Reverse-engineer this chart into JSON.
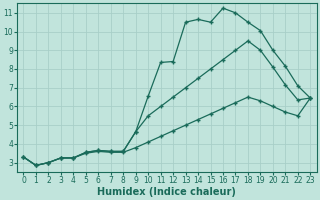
{
  "title": "",
  "xlabel": "Humidex (Indice chaleur)",
  "ylabel": "",
  "background_color": "#c1e4dc",
  "grid_color": "#a8cfc8",
  "line_color": "#1a6b5a",
  "xlim": [
    -0.5,
    23.5
  ],
  "ylim": [
    2.5,
    11.5
  ],
  "xticks": [
    0,
    1,
    2,
    3,
    4,
    5,
    6,
    7,
    8,
    9,
    10,
    11,
    12,
    13,
    14,
    15,
    16,
    17,
    18,
    19,
    20,
    21,
    22,
    23
  ],
  "yticks": [
    3,
    4,
    5,
    6,
    7,
    8,
    9,
    10,
    11
  ],
  "line1_x": [
    0,
    1,
    2,
    3,
    4,
    5,
    6,
    7,
    8,
    9,
    10,
    11,
    12,
    13,
    14,
    15,
    16,
    17,
    18,
    19,
    20,
    21,
    22,
    23
  ],
  "line1_y": [
    3.3,
    2.85,
    3.0,
    3.25,
    3.25,
    3.55,
    3.65,
    3.6,
    3.6,
    4.65,
    6.55,
    8.35,
    8.4,
    10.5,
    10.65,
    10.5,
    11.25,
    11.0,
    10.5,
    10.05,
    9.0,
    8.15,
    7.1,
    6.45
  ],
  "line2_x": [
    0,
    1,
    2,
    3,
    4,
    5,
    6,
    7,
    8,
    9,
    10,
    11,
    12,
    13,
    14,
    15,
    16,
    17,
    18,
    19,
    20,
    21,
    22,
    23
  ],
  "line2_y": [
    3.3,
    2.85,
    3.0,
    3.25,
    3.25,
    3.55,
    3.65,
    3.6,
    3.6,
    4.65,
    5.5,
    6.0,
    6.5,
    7.0,
    7.5,
    8.0,
    8.5,
    9.0,
    9.5,
    9.0,
    8.1,
    7.15,
    6.35,
    6.45
  ],
  "line3_x": [
    0,
    1,
    2,
    3,
    4,
    5,
    6,
    7,
    8,
    9,
    10,
    11,
    12,
    13,
    14,
    15,
    16,
    17,
    18,
    19,
    20,
    21,
    22,
    23
  ],
  "line3_y": [
    3.3,
    2.85,
    3.0,
    3.25,
    3.25,
    3.5,
    3.6,
    3.55,
    3.55,
    3.8,
    4.1,
    4.4,
    4.7,
    5.0,
    5.3,
    5.6,
    5.9,
    6.2,
    6.5,
    6.3,
    6.0,
    5.7,
    5.5,
    6.45
  ],
  "marker": "+",
  "markersize": 3.5,
  "linewidth": 0.9,
  "xlabel_fontsize": 7,
  "tick_fontsize": 5.5
}
